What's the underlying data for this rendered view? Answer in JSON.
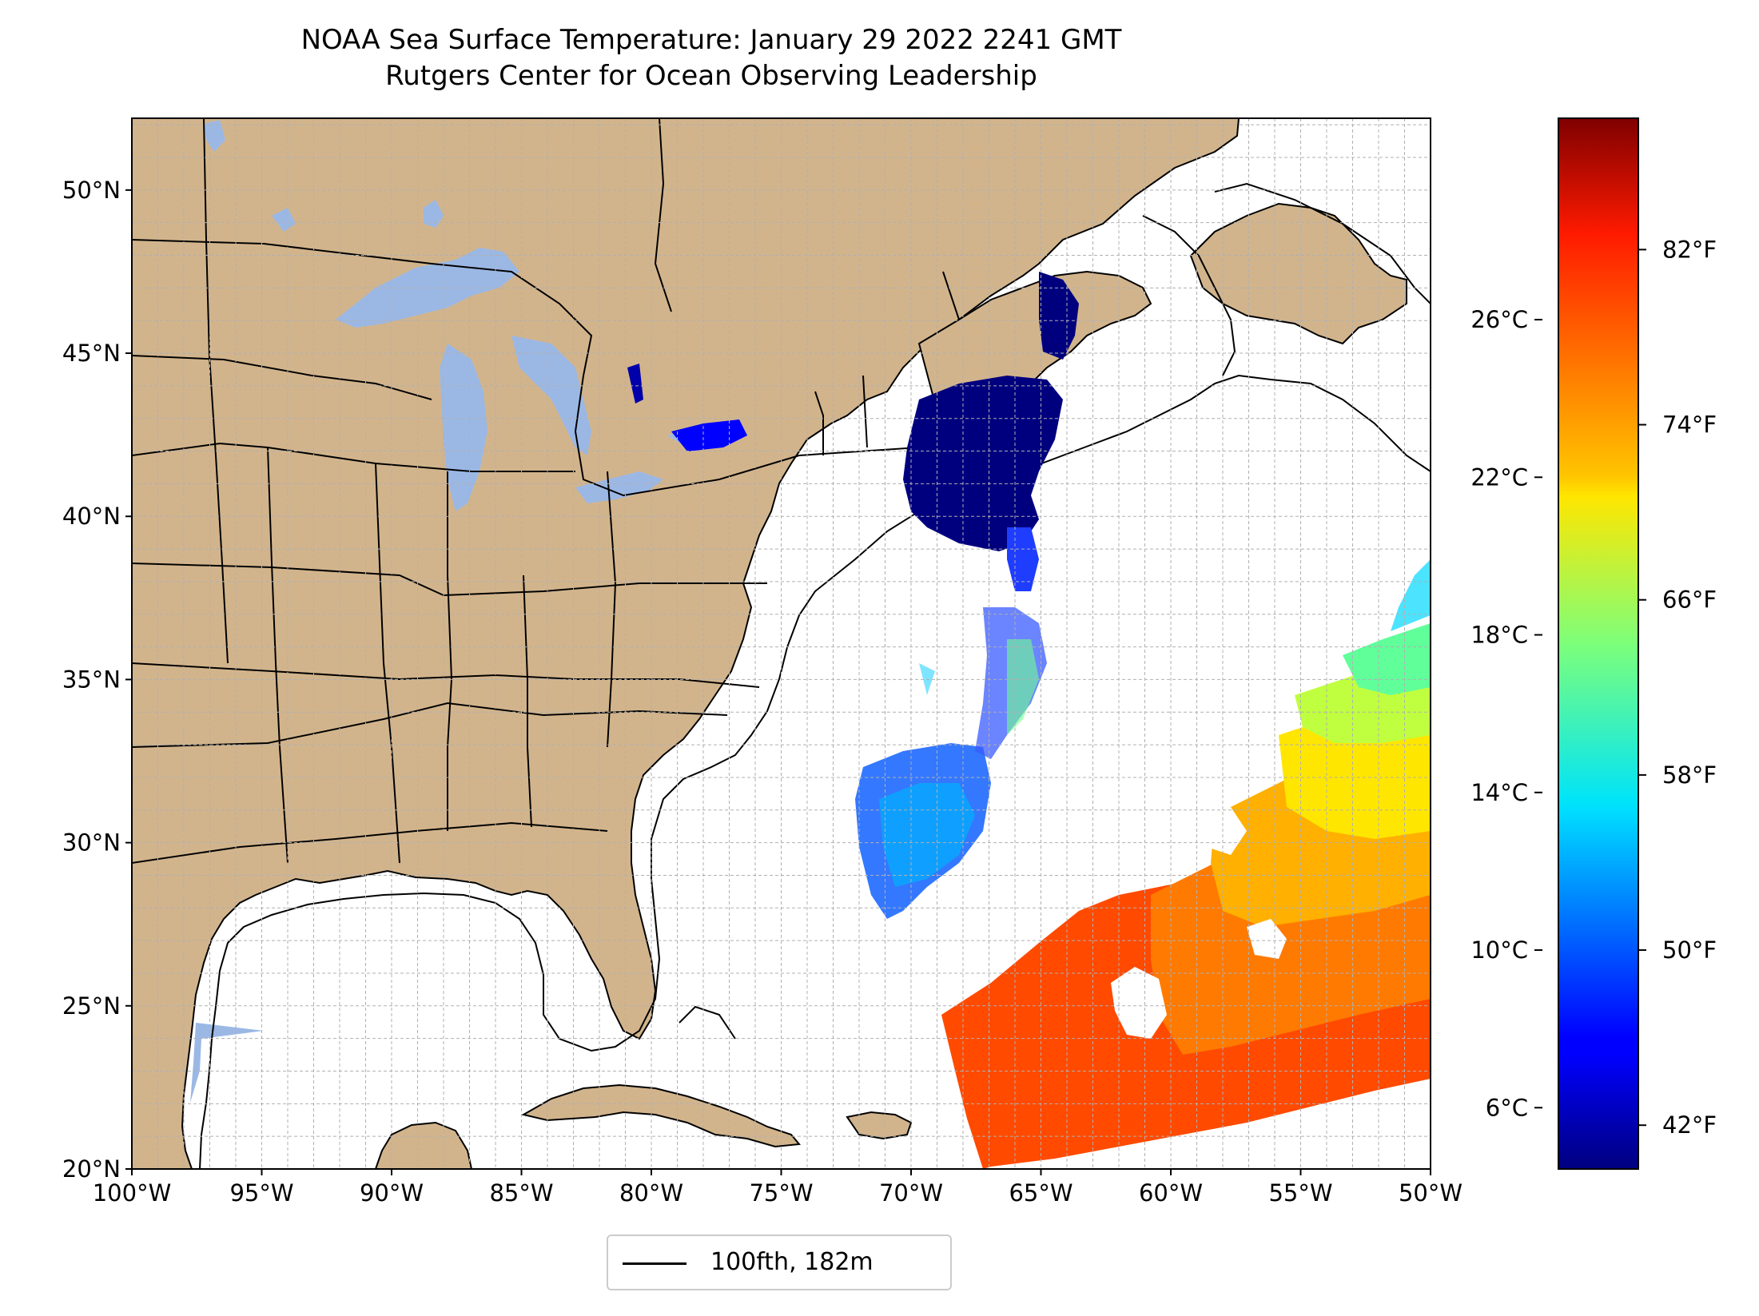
{
  "title": {
    "line1": "NOAA Sea Surface Temperature: January 29 2022 2241 GMT",
    "line2": "Rutgers Center for Ocean Observing Leadership"
  },
  "map": {
    "lon_range": [
      -100,
      -50
    ],
    "lat_range": [
      20,
      52.2
    ],
    "lat_ticks": [
      "20°N",
      "25°N",
      "30°N",
      "35°N",
      "40°N",
      "45°N",
      "50°N"
    ],
    "lon_ticks": [
      "100°W",
      "95°W",
      "90°W",
      "85°W",
      "80°W",
      "75°W",
      "70°W",
      "65°W",
      "60°W",
      "55°W",
      "50°W"
    ],
    "grid": true,
    "colors": {
      "land": "#d2b48c",
      "lakes": "#9bb8e5",
      "ocean": "#ffffff",
      "contour": "#000000"
    }
  },
  "legend": {
    "label": "100fth, 182m"
  },
  "colorbar": {
    "colormap": "jet",
    "f_range": [
      40,
      88
    ],
    "c_ticks": [
      "6°C",
      "10°C",
      "14°C",
      "18°C",
      "22°C",
      "26°C"
    ],
    "f_ticks": [
      "42°F",
      "50°F",
      "58°F",
      "66°F",
      "74°F",
      "82°F"
    ]
  }
}
